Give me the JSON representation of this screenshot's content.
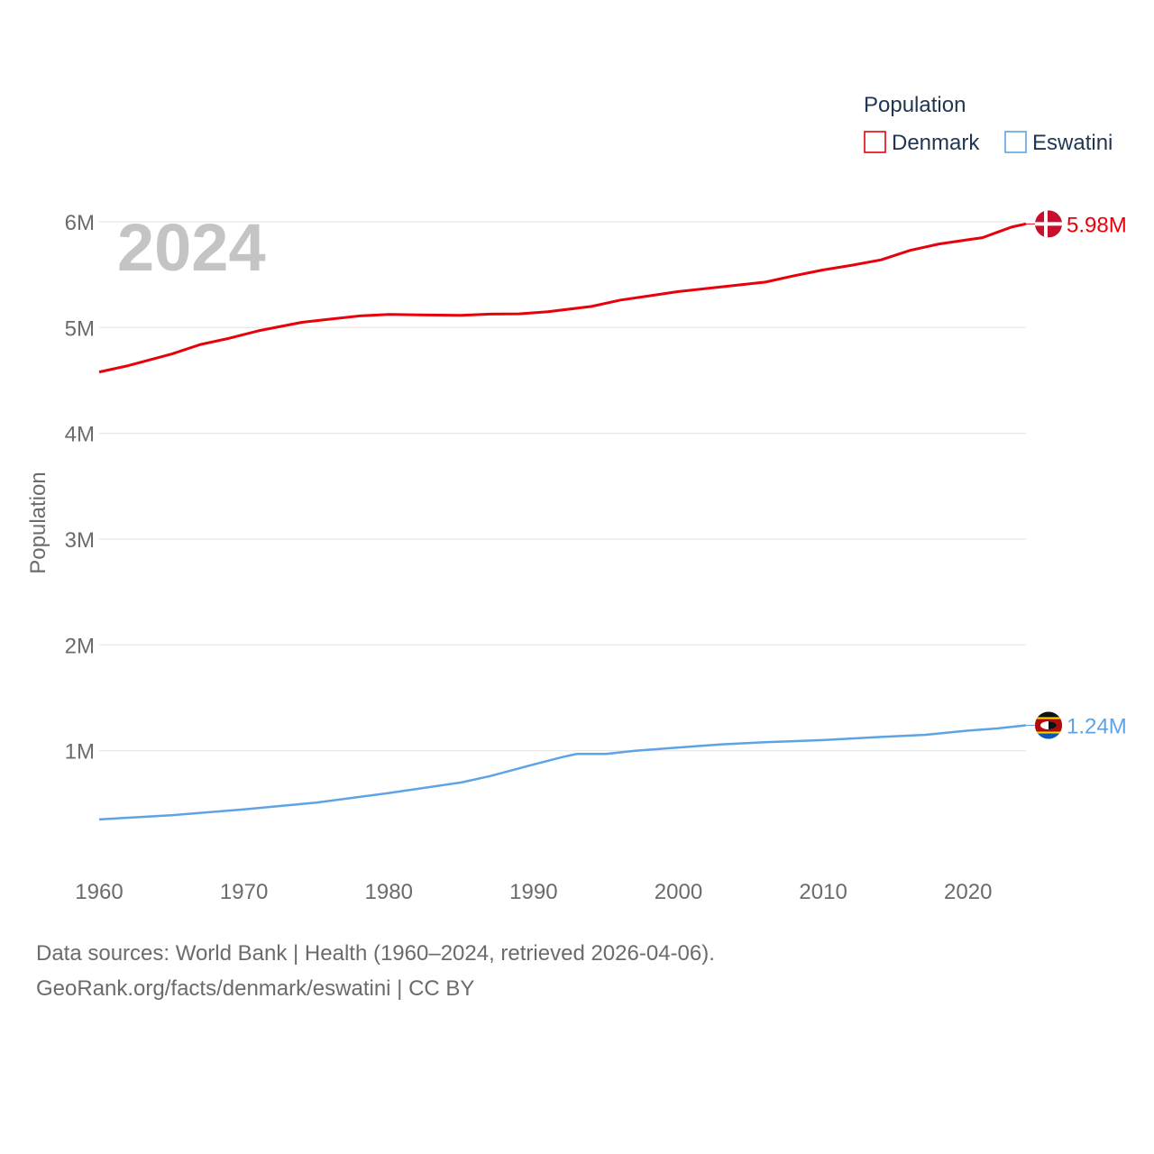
{
  "chart_data": {
    "type": "line",
    "year_label": "2024",
    "ylabel": "Population",
    "xlabel": "",
    "xlim": [
      1960,
      2024
    ],
    "ylim": [
      0,
      6000000
    ],
    "x_ticks": [
      1960,
      1970,
      1980,
      1990,
      2000,
      2010,
      2020
    ],
    "y_ticks": [
      {
        "value": 1000000,
        "label": "1M"
      },
      {
        "value": 2000000,
        "label": "2M"
      },
      {
        "value": 3000000,
        "label": "3M"
      },
      {
        "value": 4000000,
        "label": "4M"
      },
      {
        "value": 5000000,
        "label": "5M"
      },
      {
        "value": 6000000,
        "label": "6M"
      }
    ],
    "legend": {
      "title": "Population",
      "position": "top-right",
      "entries": [
        "Denmark",
        "Eswatini"
      ]
    },
    "series": [
      {
        "name": "Denmark",
        "color": "#e8000b",
        "flag": "denmark-flag",
        "end_label": "5.98M",
        "points": [
          [
            1960,
            4580000
          ],
          [
            1962,
            4640000
          ],
          [
            1965,
            4750000
          ],
          [
            1967,
            4840000
          ],
          [
            1969,
            4900000
          ],
          [
            1971,
            4970000
          ],
          [
            1974,
            5050000
          ],
          [
            1976,
            5080000
          ],
          [
            1978,
            5110000
          ],
          [
            1980,
            5125000
          ],
          [
            1982,
            5120000
          ],
          [
            1985,
            5115000
          ],
          [
            1987,
            5127000
          ],
          [
            1989,
            5130000
          ],
          [
            1991,
            5150000
          ],
          [
            1994,
            5200000
          ],
          [
            1996,
            5260000
          ],
          [
            1998,
            5300000
          ],
          [
            2000,
            5340000
          ],
          [
            2002,
            5370000
          ],
          [
            2004,
            5400000
          ],
          [
            2006,
            5430000
          ],
          [
            2008,
            5490000
          ],
          [
            2010,
            5545000
          ],
          [
            2012,
            5590000
          ],
          [
            2014,
            5640000
          ],
          [
            2016,
            5730000
          ],
          [
            2018,
            5790000
          ],
          [
            2020,
            5830000
          ],
          [
            2021,
            5850000
          ],
          [
            2022,
            5900000
          ],
          [
            2023,
            5950000
          ],
          [
            2024,
            5980000
          ]
        ]
      },
      {
        "name": "Eswatini",
        "color": "#5ea3e3",
        "flag": "eswatini-flag",
        "end_label": "1.24M",
        "points": [
          [
            1960,
            350000
          ],
          [
            1965,
            390000
          ],
          [
            1970,
            445000
          ],
          [
            1975,
            510000
          ],
          [
            1980,
            600000
          ],
          [
            1985,
            700000
          ],
          [
            1987,
            760000
          ],
          [
            1990,
            870000
          ],
          [
            1992,
            940000
          ],
          [
            1993,
            970000
          ],
          [
            1995,
            970000
          ],
          [
            1997,
            1000000
          ],
          [
            2000,
            1030000
          ],
          [
            2003,
            1060000
          ],
          [
            2006,
            1080000
          ],
          [
            2010,
            1100000
          ],
          [
            2014,
            1130000
          ],
          [
            2017,
            1150000
          ],
          [
            2020,
            1190000
          ],
          [
            2022,
            1210000
          ],
          [
            2024,
            1240000
          ]
        ]
      }
    ]
  },
  "footer": {
    "line1": "Data sources: World Bank | Health (1960–2024, retrieved 2026-04-06).",
    "line2": "GeoRank.org/facts/denmark/eswatini | CC BY"
  }
}
